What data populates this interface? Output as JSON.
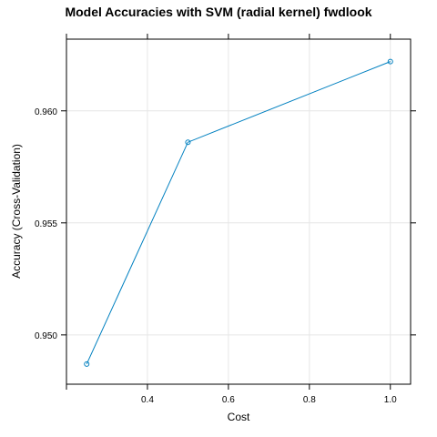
{
  "chart_data": {
    "type": "line",
    "title": "Model Accuracies with SVM (radial kernel) fwdlook",
    "xlabel": "Cost",
    "ylabel": "Accuracy (Cross-Validation)",
    "x": [
      0.25,
      0.5,
      1.0
    ],
    "series": [
      {
        "values": [
          0.9487,
          0.9586,
          0.9622
        ]
      }
    ],
    "xlim": [
      0.2,
      1.05
    ],
    "ylim": [
      0.9478,
      0.9632
    ],
    "xticks": [
      0.4,
      0.6,
      0.8,
      1.0
    ],
    "xtick_labels": [
      "0.4",
      "0.6",
      "0.8",
      "1.0"
    ],
    "yticks": [
      0.95,
      0.955,
      0.96
    ],
    "ytick_labels": [
      "0.950",
      "0.955",
      "0.960"
    ],
    "grid": true,
    "color": "#0080c0"
  }
}
